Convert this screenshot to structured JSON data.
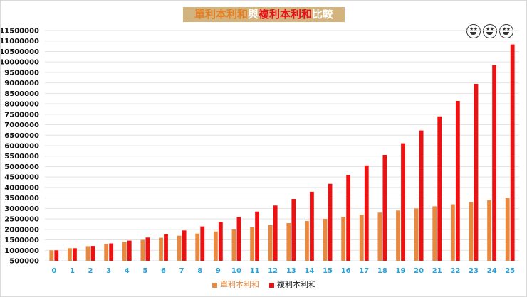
{
  "title": {
    "part1": "單利本利和",
    "part2": "與",
    "part3": "複利本利和",
    "part4": "比較"
  },
  "colors": {
    "simple": "#e8893f",
    "compound": "#ee1111",
    "title_bg": "#d3b47e",
    "xtick": "#2aa1d6",
    "grid": "#e3e3e3"
  },
  "decoration": {
    "icon": "star-struck-emoji-icon",
    "count": 3
  },
  "chart_data": {
    "type": "bar",
    "title": "單利本利和與複利本利和比較",
    "xlabel": "",
    "ylabel": "",
    "categories": [
      "0",
      "1",
      "2",
      "3",
      "4",
      "5",
      "6",
      "7",
      "8",
      "9",
      "10",
      "11",
      "12",
      "13",
      "14",
      "15",
      "16",
      "17",
      "18",
      "19",
      "20",
      "21",
      "22",
      "23",
      "24",
      "25"
    ],
    "ylim": [
      500000,
      11500000
    ],
    "yticks": [
      500000,
      1000000,
      1500000,
      2000000,
      2500000,
      3000000,
      3500000,
      4000000,
      4500000,
      5000000,
      5500000,
      6000000,
      6500000,
      7000000,
      7500000,
      8000000,
      8500000,
      9000000,
      9500000,
      10000000,
      10500000,
      11000000,
      11500000
    ],
    "grid": true,
    "legend": "bottom",
    "series": [
      {
        "name": "單利本利和",
        "values": [
          1000000,
          1100000,
          1200000,
          1300000,
          1400000,
          1500000,
          1600000,
          1700000,
          1800000,
          1900000,
          2000000,
          2100000,
          2200000,
          2300000,
          2400000,
          2500000,
          2600000,
          2700000,
          2800000,
          2900000,
          3000000,
          3100000,
          3200000,
          3300000,
          3400000,
          3500000
        ]
      },
      {
        "name": "複利本利和",
        "values": [
          1000000,
          1100000,
          1210000,
          1331000,
          1464100,
          1610510,
          1771561,
          1948717,
          2143589,
          2357948,
          2593742,
          2853117,
          3138428,
          3452271,
          3797498,
          4177248,
          4594973,
          5054470,
          5559917,
          6115909,
          6727500,
          7400250,
          8140275,
          8954302,
          9849733,
          10834706
        ]
      }
    ]
  }
}
